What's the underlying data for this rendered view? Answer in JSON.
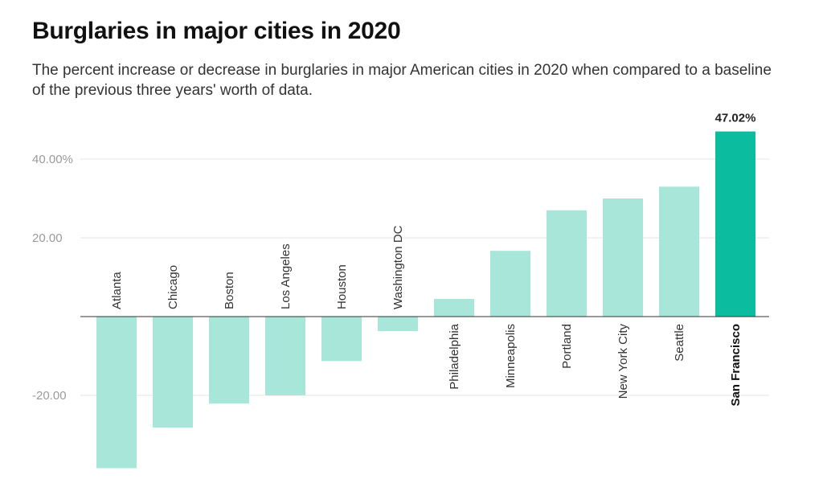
{
  "header": {
    "title": "Burglaries in major cities in 2020",
    "subtitle": "The percent increase or decrease in burglaries in major American cities in 2020 when compared to a baseline of the previous three years' worth of data."
  },
  "colors": {
    "bar": "#a8e6da",
    "highlight": "#0bbc9e"
  },
  "chart_data": {
    "type": "bar",
    "title": "Burglaries in major cities in 2020",
    "subtitle": "The percent increase or decrease in burglaries in major American cities in 2020 when compared to a baseline of the previous three years' worth of data.",
    "xlabel": "",
    "ylabel": "",
    "categories": [
      "Atlanta",
      "Chicago",
      "Boston",
      "Los Angeles",
      "Houston",
      "Washington DC",
      "Philadelphia",
      "Minneapolis",
      "Portland",
      "New York City",
      "Seattle",
      "San Francisco"
    ],
    "values": [
      -38.5,
      -28.2,
      -22.1,
      -20.0,
      -11.3,
      -3.7,
      4.5,
      16.7,
      27.0,
      30.0,
      33.0,
      47.02
    ],
    "highlight": "San Francisco",
    "data_labels": [
      {
        "category": "San Francisco",
        "text": "47.02%"
      }
    ],
    "yticks": [
      {
        "value": 40,
        "label": "40.00%"
      },
      {
        "value": 20,
        "label": "20.00"
      },
      {
        "value": -20,
        "label": "-20.00"
      }
    ],
    "ylim": [
      -42,
      50
    ],
    "grid": true,
    "legend": "none"
  }
}
